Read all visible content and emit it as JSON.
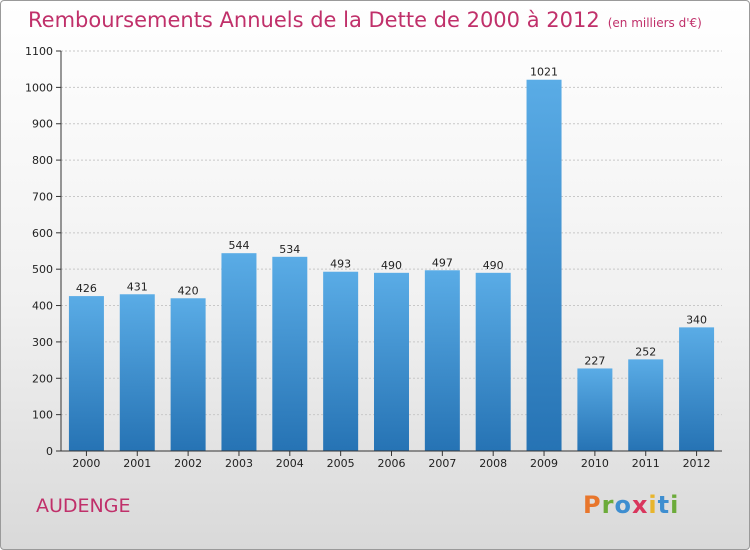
{
  "title": "Remboursements Annuels de la Dette de 2000 à 2012",
  "subtitle": "(en milliers d'€)",
  "place": "AUDENGE",
  "brand": {
    "text": "Proxiti",
    "colors": [
      "#e8762c",
      "#6cab3a",
      "#3e8ed0",
      "#d9365d",
      "#e8b52c",
      "#3e8ed0",
      "#6cab3a"
    ]
  },
  "colors": {
    "title": "#c0306a",
    "bar_top": "#5aace6",
    "bar_bottom": "#2673b4",
    "grid": "#c8c8c8"
  },
  "chart_data": {
    "type": "bar",
    "title": "Remboursements Annuels de la Dette de 2000 à 2012",
    "subtitle": "(en milliers d'€)",
    "categories": [
      "2000",
      "2001",
      "2002",
      "2003",
      "2004",
      "2005",
      "2006",
      "2007",
      "2008",
      "2009",
      "2010",
      "2011",
      "2012"
    ],
    "values": [
      426,
      431,
      420,
      544,
      534,
      493,
      490,
      497,
      490,
      1021,
      227,
      252,
      340
    ],
    "ylim": [
      0,
      1100
    ],
    "yticks": [
      0,
      100,
      200,
      300,
      400,
      500,
      600,
      700,
      800,
      900,
      1000,
      1100
    ],
    "grid": true,
    "legend": "none"
  }
}
